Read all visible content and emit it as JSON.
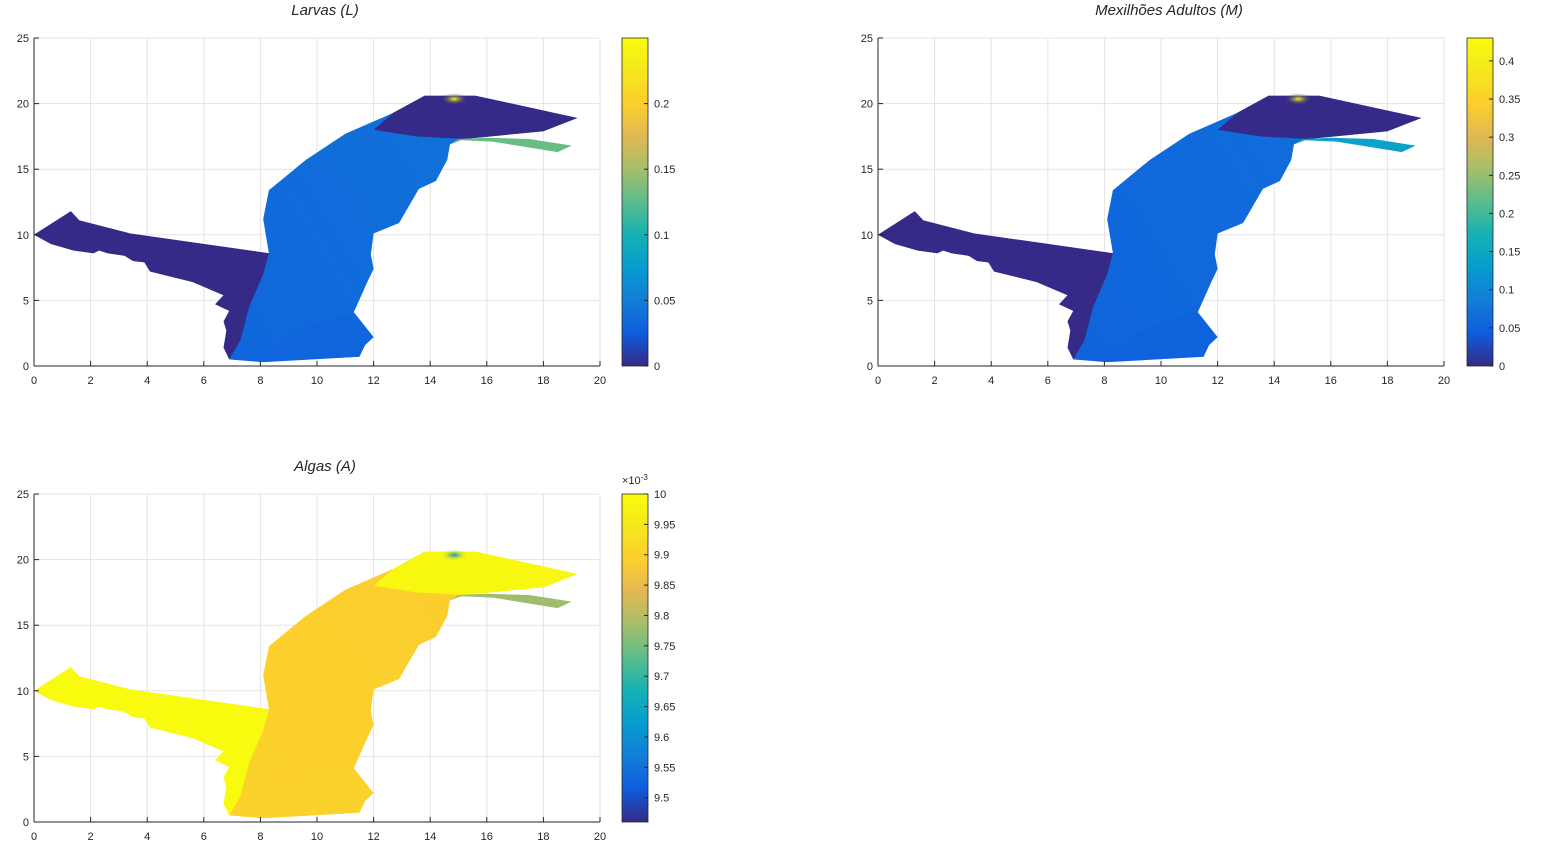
{
  "chart_data": [
    {
      "type": "heatmap",
      "title": "Larvas (L)",
      "xlim": [
        0,
        20
      ],
      "ylim": [
        0,
        25
      ],
      "x_ticks": [
        "0",
        "2",
        "4",
        "6",
        "8",
        "10",
        "12",
        "14",
        "16",
        "18",
        "20"
      ],
      "y_ticks": [
        "0",
        "5",
        "10",
        "15",
        "20",
        "25"
      ],
      "grid": true,
      "colormap": "parula",
      "colorbar": {
        "range": [
          0,
          0.25
        ],
        "ticks": [
          "0",
          "0.05",
          "0.1",
          "0.15",
          "0.2"
        ],
        "exponent_label": ""
      },
      "regions": {
        "west_channel": 0.0,
        "lower_basin": 0.03,
        "central_basin": 0.045,
        "northeast_arm": 0.0,
        "east_spur": 0.13,
        "hotspot": 0.25
      }
    },
    {
      "type": "heatmap",
      "title": "Mexilhões Adultos (M)",
      "xlim": [
        0,
        20
      ],
      "ylim": [
        0,
        25
      ],
      "x_ticks": [
        "0",
        "2",
        "4",
        "6",
        "8",
        "10",
        "12",
        "14",
        "16",
        "18",
        "20"
      ],
      "y_ticks": [
        "0",
        "5",
        "10",
        "15",
        "20",
        "25"
      ],
      "grid": true,
      "colormap": "parula",
      "colorbar": {
        "range": [
          0,
          0.43
        ],
        "ticks": [
          "0",
          "0.05",
          "0.1",
          "0.15",
          "0.2",
          "0.25",
          "0.3",
          "0.35",
          "0.4"
        ],
        "exponent_label": ""
      },
      "regions": {
        "west_channel": 0.0,
        "lower_basin": 0.05,
        "central_basin": 0.07,
        "northeast_arm": 0.0,
        "east_spur": 0.14,
        "hotspot": 0.43
      }
    },
    {
      "type": "heatmap",
      "title": "Algas (A)",
      "xlim": [
        0,
        20
      ],
      "ylim": [
        0,
        25
      ],
      "x_ticks": [
        "0",
        "2",
        "4",
        "6",
        "8",
        "10",
        "12",
        "14",
        "16",
        "18",
        "20"
      ],
      "y_ticks": [
        "0",
        "5",
        "10",
        "15",
        "20",
        "25"
      ],
      "grid": true,
      "colormap": "parula",
      "colorbar": {
        "range": [
          9.46,
          10.0
        ],
        "ticks": [
          "9.5",
          "9.55",
          "9.6",
          "9.65",
          "9.7",
          "9.75",
          "9.8",
          "9.85",
          "9.9",
          "9.95",
          "10"
        ],
        "exponent_label": "×10"
      },
      "regions": {
        "west_channel": 10.0,
        "lower_basin": 9.9,
        "central_basin": 9.89,
        "northeast_arm": 9.99,
        "east_spur": 9.78,
        "hotspot": 9.6
      }
    }
  ]
}
